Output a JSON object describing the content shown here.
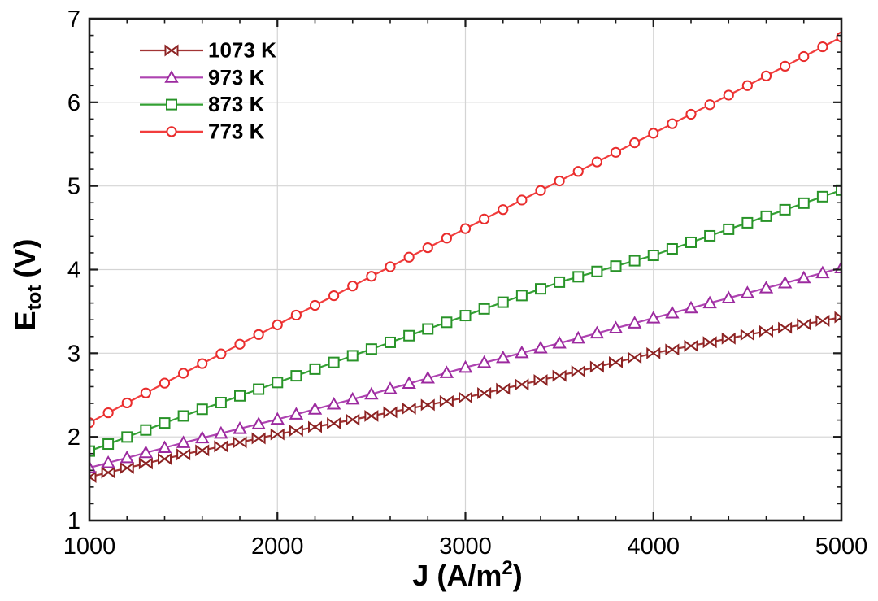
{
  "chart_data": {
    "type": "line",
    "xlabel": "J (A/m2)",
    "ylabel": "Etot (V)",
    "xlabel_parts": {
      "main": "J (A/m",
      "sup": "2",
      "end": ")"
    },
    "ylabel_parts": {
      "main": "E",
      "sub": "tot",
      "end": " (V)"
    },
    "xlim": [
      1000,
      5000
    ],
    "ylim": [
      1,
      7
    ],
    "x_major_ticks": [
      1000,
      2000,
      3000,
      4000,
      5000
    ],
    "x_tick_labels": [
      "1000",
      "2000",
      "3000",
      "4000",
      "5000"
    ],
    "x_minor_step": 200,
    "y_major_ticks": [
      1,
      2,
      3,
      4,
      5,
      6,
      7
    ],
    "y_tick_labels": [
      "1",
      "2",
      "3",
      "4",
      "5",
      "6",
      "7"
    ],
    "y_minor_step": 0.2,
    "grid": true,
    "legend_position": "top-left",
    "marker_interval": 100,
    "x_anchors": [
      1000,
      1500,
      2000,
      2500,
      3000,
      3500,
      4000,
      4500,
      5000
    ],
    "series": [
      {
        "name": "1073 K",
        "marker": "bowtie",
        "line_color": "#a23434",
        "marker_color": "#8c2222",
        "values": [
          1.52,
          1.79,
          2.03,
          2.25,
          2.47,
          2.73,
          3.0,
          3.22,
          3.43
        ]
      },
      {
        "name": "973 K",
        "marker": "triangle",
        "line_color": "#ae43b1",
        "marker_color": "#9c2a9f",
        "values": [
          1.63,
          1.93,
          2.21,
          2.51,
          2.83,
          3.12,
          3.42,
          3.72,
          4.02
        ]
      },
      {
        "name": "873 K",
        "marker": "square",
        "line_color": "#33a033",
        "marker_color": "#289328",
        "values": [
          1.83,
          2.25,
          2.65,
          3.05,
          3.45,
          3.85,
          4.17,
          4.56,
          4.95
        ]
      },
      {
        "name": "773 K",
        "marker": "circle",
        "line_color": "#f23d3d",
        "marker_color": "#e92c2c",
        "values": [
          2.17,
          2.76,
          3.34,
          3.92,
          4.49,
          5.06,
          5.63,
          6.2,
          6.78
        ]
      }
    ],
    "colors": {
      "background": "#ffffff",
      "frame": "#1b1b1b",
      "grid": "#d4d4d4",
      "tick_label": "#000000",
      "legend_text": "#000000"
    }
  }
}
